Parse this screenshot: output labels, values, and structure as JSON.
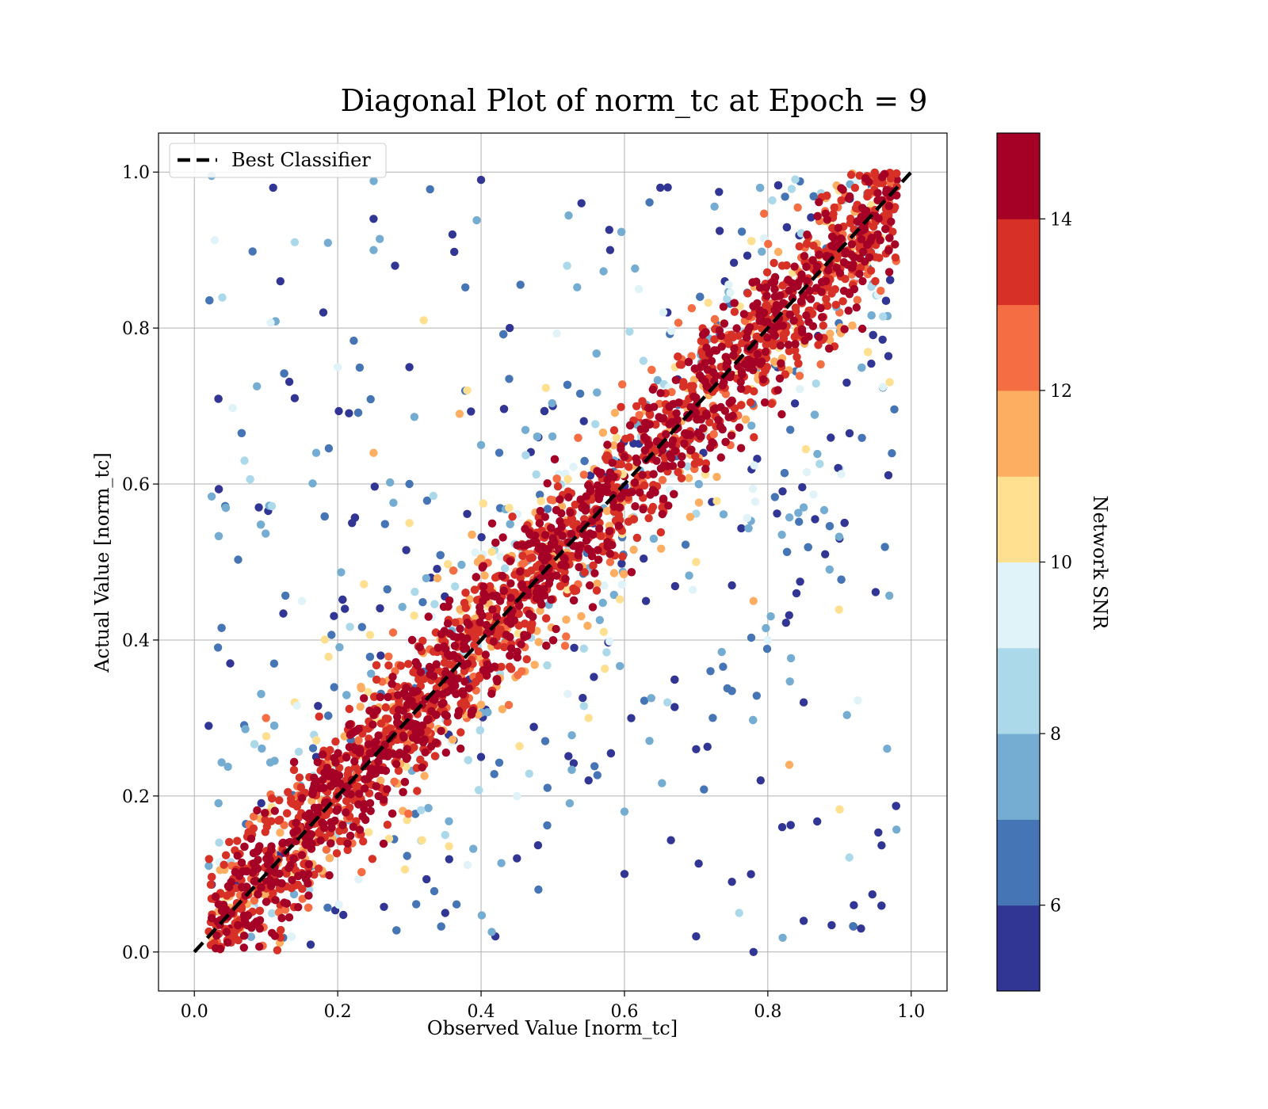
{
  "chart_data": {
    "type": "scatter",
    "title": "Diagonal Plot of norm_tc at Epoch = 9",
    "xlabel": "Observed Value [norm_tc]",
    "ylabel": "Actual Value [norm_tc]",
    "xlim": [
      -0.05,
      1.05
    ],
    "ylim": [
      -0.05,
      1.05
    ],
    "xticks": [
      "0.0",
      "0.2",
      "0.4",
      "0.6",
      "0.8",
      "1.0"
    ],
    "yticks": [
      "0.0",
      "0.2",
      "0.4",
      "0.6",
      "0.8",
      "1.0"
    ],
    "grid": true,
    "legend": {
      "location": "upper-left",
      "entries": [
        {
          "label": "Best Classifier",
          "style": "black dashed line"
        }
      ]
    },
    "reference_line": {
      "label": "Best Classifier",
      "x": [
        0.0,
        1.0
      ],
      "y": [
        0.0,
        1.0
      ],
      "color": "#000000",
      "style": "dashed"
    },
    "colorbar": {
      "label": "Network SNR",
      "range": [
        5,
        15
      ],
      "ticks": [
        "6",
        "8",
        "10",
        "12",
        "14"
      ],
      "tick_values": [
        6,
        8,
        10,
        12,
        14
      ],
      "colors": [
        "#313695",
        "#4575b4",
        "#74add1",
        "#abd9e9",
        "#e0f3f8",
        "#fee090",
        "#fdae61",
        "#f46d43",
        "#d73027",
        "#a50026"
      ],
      "colormap": "RdYlBu_r (10 discrete levels)"
    },
    "series": [
      {
        "marker": "circle",
        "point_count_estimate": 15000,
        "pattern": "points concentrated along the diagonal y = x; high SNR (dark red) points tightly around the diagonal, low SNR (blue) points widely scattered",
        "points": [
          [
            0.05,
            0.03,
            14.5
          ],
          [
            0.1,
            0.09,
            14.2
          ],
          [
            0.15,
            0.16,
            14.6
          ],
          [
            0.2,
            0.2,
            14.8
          ],
          [
            0.25,
            0.26,
            14.1
          ],
          [
            0.3,
            0.29,
            14.7
          ],
          [
            0.35,
            0.36,
            14.3
          ],
          [
            0.4,
            0.41,
            14.9
          ],
          [
            0.45,
            0.44,
            14.4
          ],
          [
            0.5,
            0.51,
            14.6
          ],
          [
            0.55,
            0.55,
            14.2
          ],
          [
            0.6,
            0.61,
            14.8
          ],
          [
            0.65,
            0.64,
            14.5
          ],
          [
            0.7,
            0.71,
            14.3
          ],
          [
            0.75,
            0.74,
            14.7
          ],
          [
            0.8,
            0.81,
            14.6
          ],
          [
            0.85,
            0.84,
            14.2
          ],
          [
            0.9,
            0.91,
            14.9
          ],
          [
            0.95,
            0.94,
            14.4
          ],
          [
            0.98,
            0.99,
            14.8
          ],
          [
            0.03,
            0.07,
            13.2
          ],
          [
            0.12,
            0.06,
            13.0
          ],
          [
            0.22,
            0.27,
            13.4
          ],
          [
            0.33,
            0.28,
            13.1
          ],
          [
            0.42,
            0.48,
            13.5
          ],
          [
            0.52,
            0.46,
            13.3
          ],
          [
            0.62,
            0.68,
            13.2
          ],
          [
            0.72,
            0.66,
            13.0
          ],
          [
            0.82,
            0.88,
            13.4
          ],
          [
            0.92,
            0.86,
            13.1
          ],
          [
            0.08,
            0.15,
            12.3
          ],
          [
            0.18,
            0.1,
            12.1
          ],
          [
            0.28,
            0.36,
            12.4
          ],
          [
            0.38,
            0.3,
            12.2
          ],
          [
            0.48,
            0.56,
            12.5
          ],
          [
            0.58,
            0.5,
            12.2
          ],
          [
            0.68,
            0.76,
            12.3
          ],
          [
            0.78,
            0.7,
            12.1
          ],
          [
            0.88,
            0.95,
            12.4
          ],
          [
            0.9,
            0.82,
            12.2
          ],
          [
            0.1,
            0.3,
            12.6
          ],
          [
            0.37,
            0.69,
            11.8
          ],
          [
            0.78,
            0.45,
            11.5
          ],
          [
            0.83,
            0.24,
            11.4
          ],
          [
            0.25,
            0.64,
            11.6
          ],
          [
            0.14,
            0.32,
            10.5
          ],
          [
            0.3,
            0.55,
            10.2
          ],
          [
            0.55,
            0.3,
            10.4
          ],
          [
            0.7,
            0.5,
            10.6
          ],
          [
            0.32,
            0.81,
            10.3
          ],
          [
            0.2,
            0.75,
            9.5
          ],
          [
            0.45,
            0.2,
            9.4
          ],
          [
            0.62,
            0.85,
            9.6
          ],
          [
            0.8,
            0.4,
            9.3
          ],
          [
            0.15,
            0.45,
            9.5
          ],
          [
            0.14,
            0.91,
            8.6
          ],
          [
            0.07,
            0.63,
            8.4
          ],
          [
            0.35,
            0.15,
            8.5
          ],
          [
            0.66,
            0.32,
            8.7
          ],
          [
            0.52,
            0.88,
            8.3
          ],
          [
            0.9,
            0.62,
            8.5
          ],
          [
            0.76,
            0.05,
            8.4
          ],
          [
            0.25,
            0.9,
            7.5
          ],
          [
            0.4,
            0.65,
            7.3
          ],
          [
            0.6,
            0.18,
            7.6
          ],
          [
            0.85,
            0.57,
            7.4
          ],
          [
            0.17,
            0.64,
            7.5
          ],
          [
            0.48,
            0.08,
            6.5
          ],
          [
            0.72,
            0.36,
            6.4
          ],
          [
            0.3,
            0.6,
            6.6
          ],
          [
            0.11,
            0.98,
            5.2
          ],
          [
            0.02,
            0.29,
            5.4
          ],
          [
            0.05,
            0.37,
            5.3
          ],
          [
            0.14,
            0.71,
            5.1
          ],
          [
            0.12,
            0.86,
            5.5
          ],
          [
            0.18,
            0.82,
            5.2
          ],
          [
            0.25,
            0.94,
            5.3
          ],
          [
            0.4,
            0.99,
            5.4
          ],
          [
            0.44,
            0.8,
            5.1
          ],
          [
            0.5,
            0.7,
            5.2
          ],
          [
            0.65,
            0.98,
            5.3
          ],
          [
            0.7,
            0.02,
            5.4
          ],
          [
            0.78,
            0.0,
            5.2
          ],
          [
            0.82,
            0.16,
            5.3
          ],
          [
            0.85,
            0.04,
            5.1
          ],
          [
            0.92,
            0.06,
            5.5
          ],
          [
            0.93,
            0.03,
            5.2
          ],
          [
            0.9,
            0.53,
            5.3
          ],
          [
            0.88,
            0.51,
            5.4
          ],
          [
            0.6,
            0.1,
            5.2
          ],
          [
            0.55,
            0.22,
            5.3
          ],
          [
            0.45,
            0.12,
            5.1
          ],
          [
            0.35,
            0.05,
            5.2
          ],
          [
            0.7,
            0.26,
            5.4
          ],
          [
            0.75,
            0.47,
            5.3
          ],
          [
            0.66,
            0.82,
            5.2
          ],
          [
            0.58,
            0.9,
            5.5
          ],
          [
            0.3,
            0.75,
            5.3
          ],
          [
            0.22,
            0.55,
            5.4
          ],
          [
            0.09,
            0.57,
            5.2
          ],
          [
            0.85,
            0.32,
            5.1
          ],
          [
            0.84,
            0.46,
            5.3
          ],
          [
            0.63,
            0.45,
            5.2
          ],
          [
            0.53,
            0.39,
            5.4
          ],
          [
            0.4,
            0.25,
            5.3
          ],
          [
            0.71,
            0.64,
            5.2
          ],
          [
            0.48,
            0.66,
            5.1
          ],
          [
            0.33,
            0.48,
            5.3
          ],
          [
            0.26,
            0.38,
            5.4
          ],
          [
            0.17,
            0.25,
            5.2
          ],
          [
            0.42,
            0.02,
            5.3
          ],
          [
            0.75,
            0.09,
            5.4
          ],
          [
            0.79,
            0.22,
            5.2
          ],
          [
            0.87,
            0.79,
            5.3
          ],
          [
            0.91,
            0.73,
            5.1
          ],
          [
            0.74,
            0.86,
            5.2
          ],
          [
            0.54,
            0.96,
            5.5
          ],
          [
            0.36,
            0.92,
            5.3
          ],
          [
            0.28,
            0.88,
            5.4
          ],
          [
            0.21,
            0.44,
            5.2
          ]
        ]
      }
    ]
  }
}
